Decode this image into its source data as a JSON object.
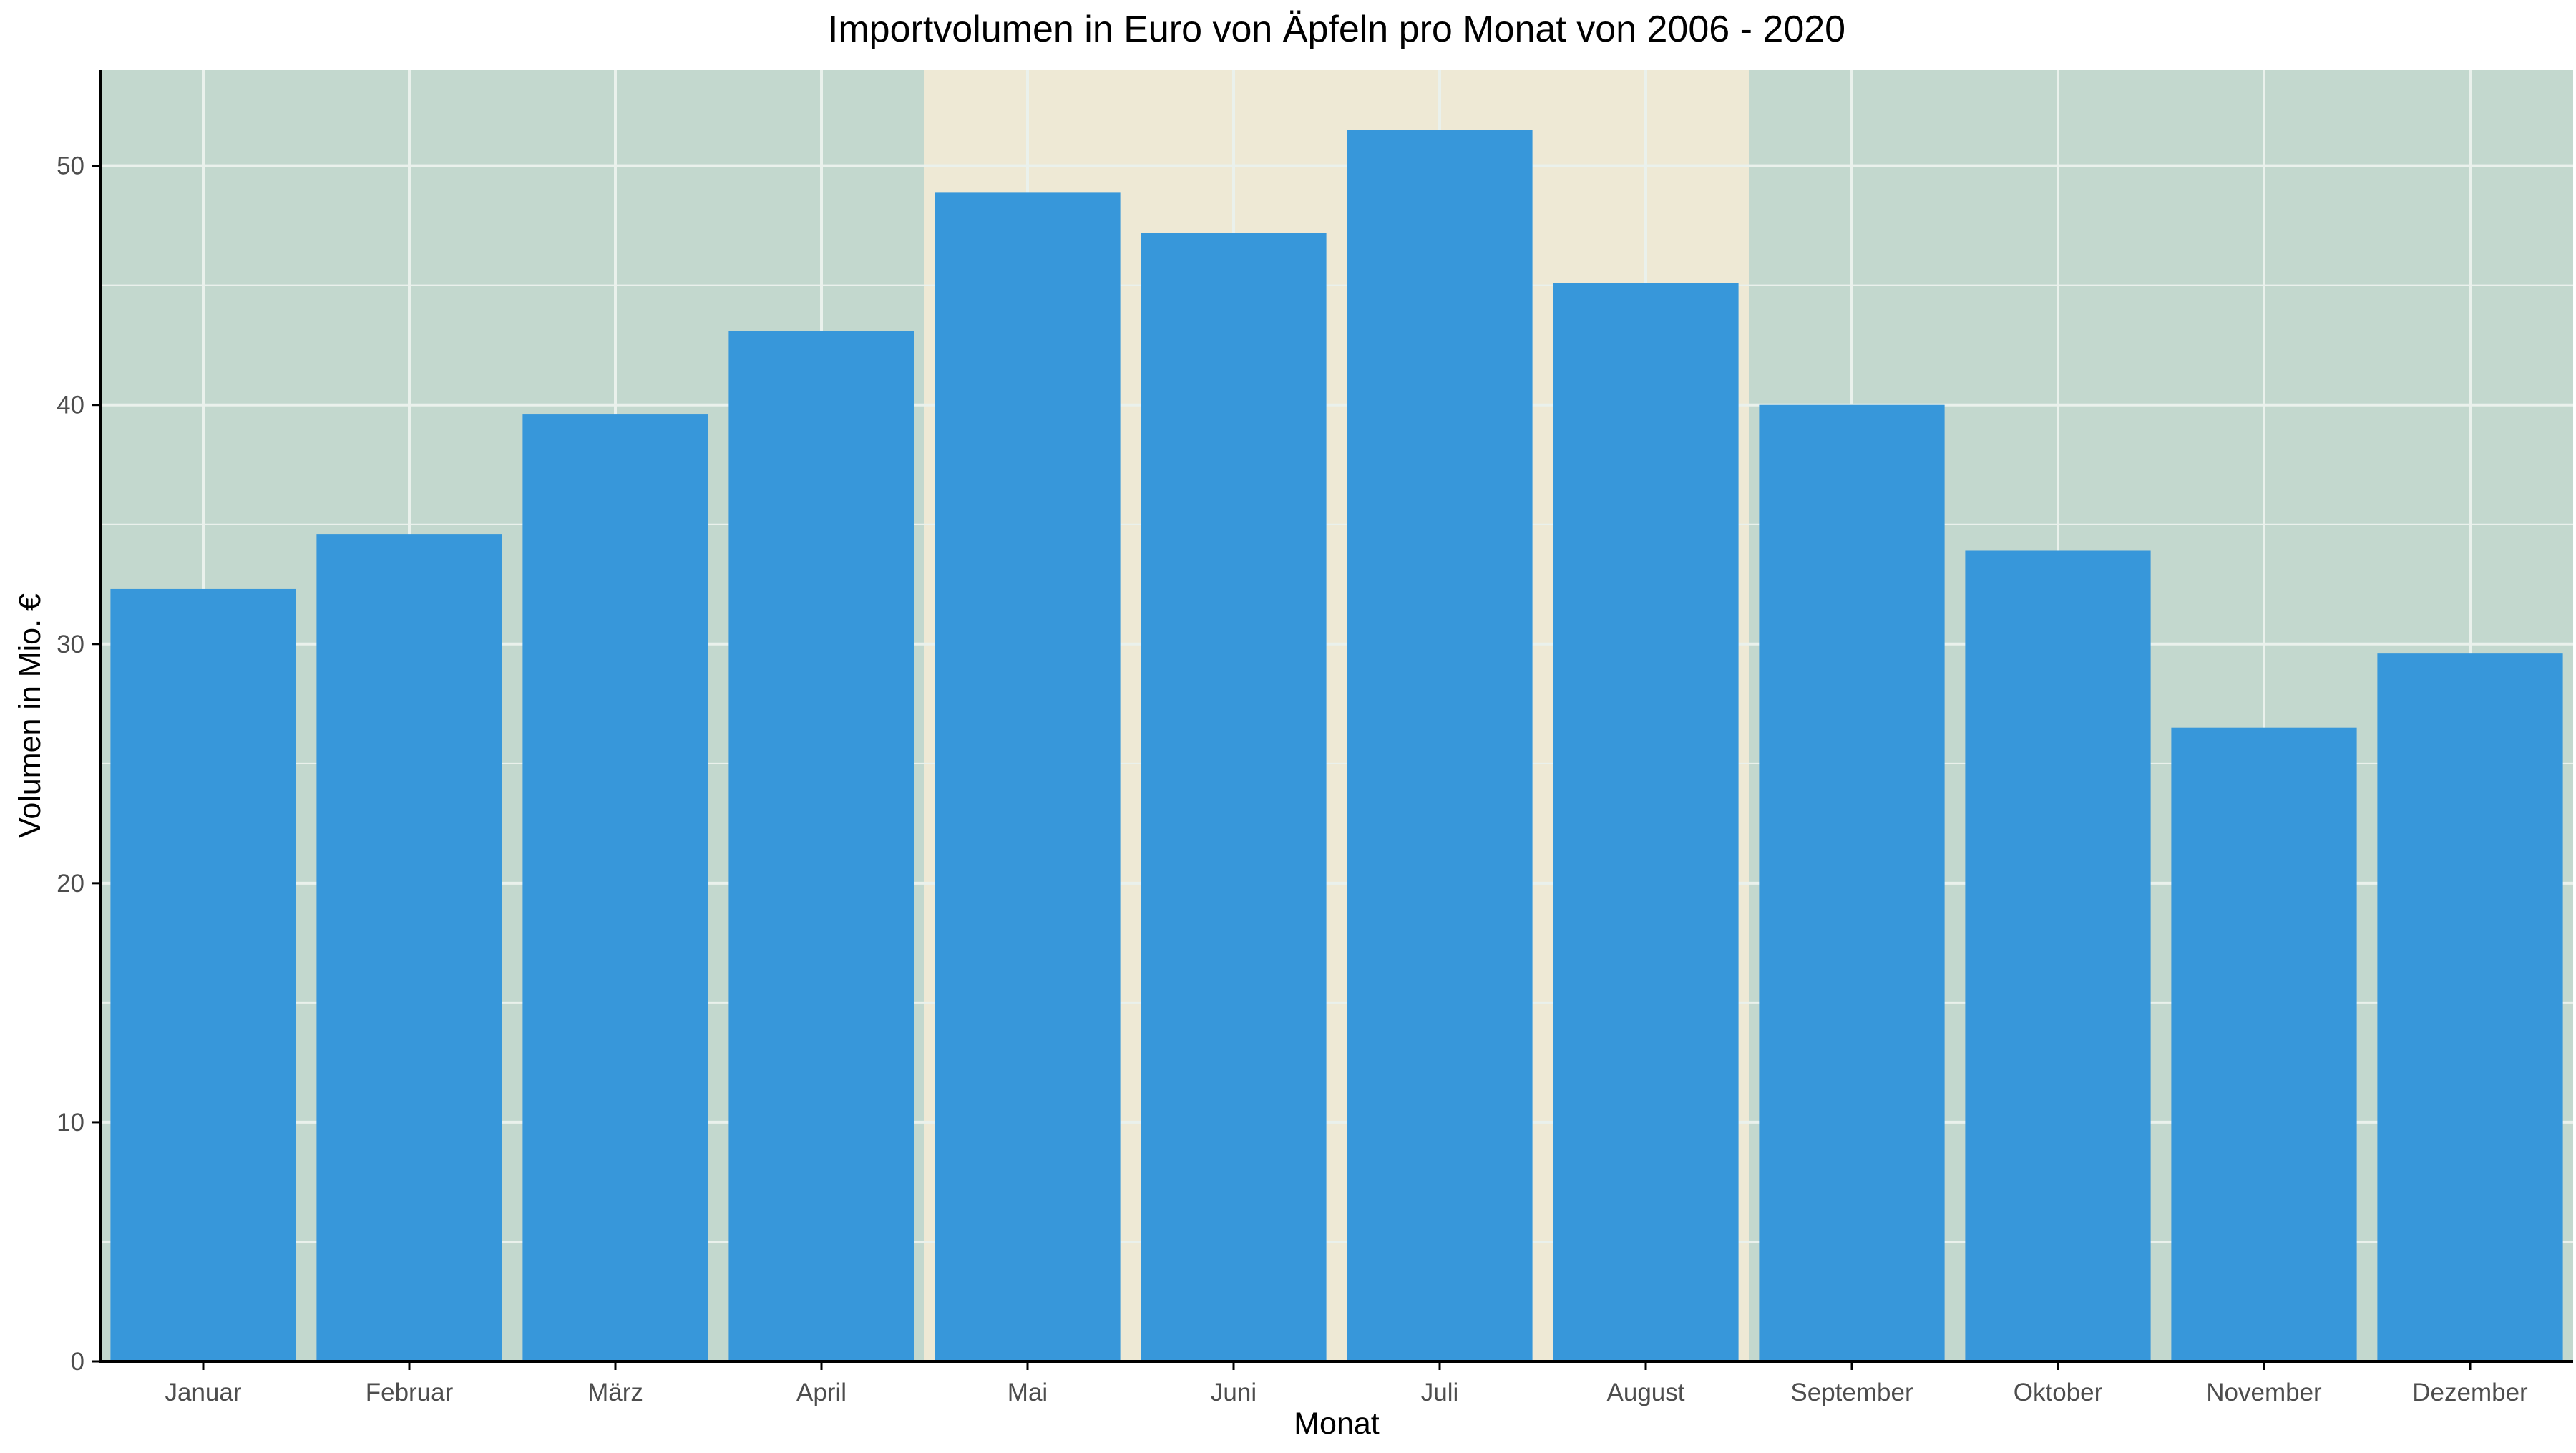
{
  "chart_data": {
    "type": "bar",
    "title": "Importvolumen in Euro von Äpfeln pro Monat von 2006 - 2020",
    "xlabel": "Monat",
    "ylabel": "Volumen in Mio. €",
    "categories": [
      "Januar",
      "Februar",
      "März",
      "April",
      "Mai",
      "Juni",
      "Juli",
      "August",
      "September",
      "Oktober",
      "November",
      "Dezember"
    ],
    "values": [
      32.3,
      34.6,
      39.6,
      43.1,
      48.9,
      47.2,
      51.5,
      45.1,
      40.0,
      33.9,
      26.5,
      29.6
    ],
    "ylim": [
      0,
      54
    ],
    "yticks": [
      0,
      10,
      20,
      30,
      40,
      50
    ],
    "grid": true,
    "legend": "none",
    "highlight_range": [
      "Mai",
      "August"
    ],
    "colors": {
      "bar": "#3797DA",
      "background": "#C3D8CE",
      "highlight_background": "#EEE9D5",
      "grid": "#EAF1EC",
      "axis": "#000000",
      "text": "#000000",
      "tick_text": "#4D4D4D"
    }
  }
}
